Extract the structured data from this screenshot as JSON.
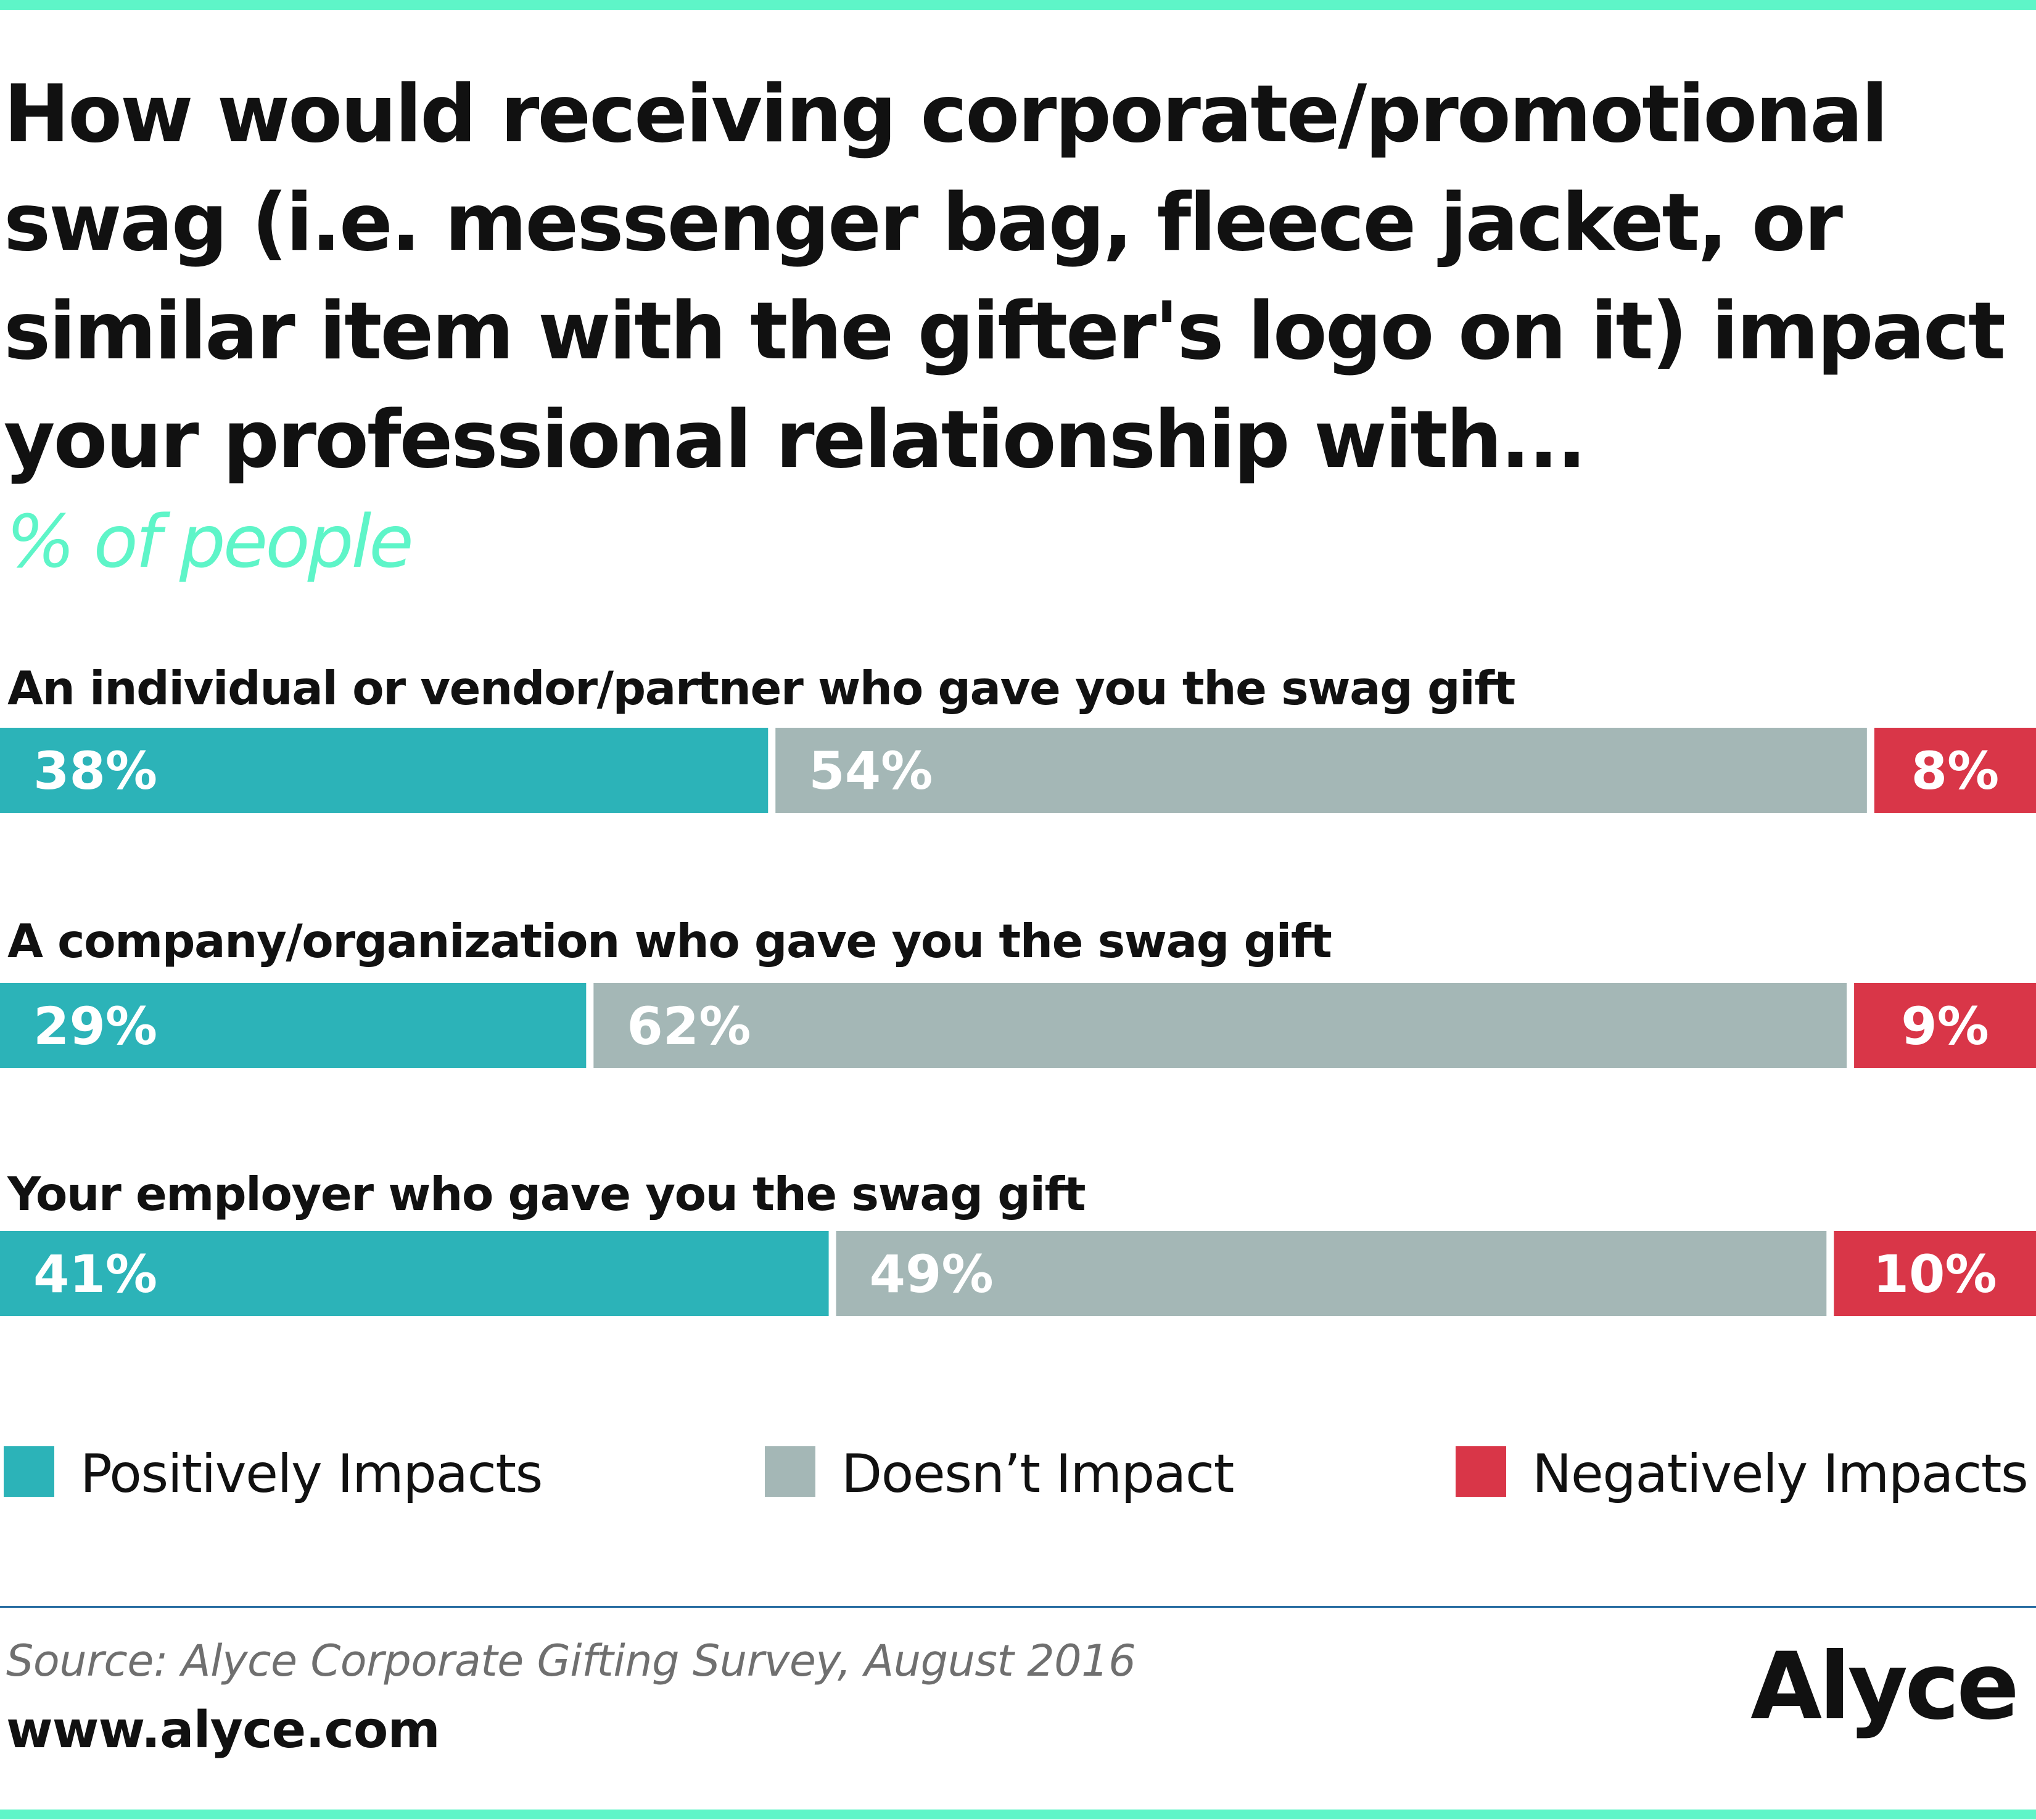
{
  "title": "How would receiving corporate/promotional swag (i.e. messenger bag, fleece jacket, or similar item with the gifter's logo on it) impact your professional relationship with...",
  "subtitle": "% of people",
  "colors": {
    "positive": "#2cb3b8",
    "neutral": "#a4b7b6",
    "negative": "#d93648",
    "accent": "#5ef5c8",
    "divider": "#2b6fa3"
  },
  "chart_data": {
    "type": "bar",
    "orientation": "horizontal",
    "stacked": true,
    "normalized_percent": true,
    "title": "How would receiving corporate/promotional swag (i.e. messenger bag, fleece jacket, or similar item with the gifter's logo on it) impact your professional relationship with...",
    "subtitle": "% of people",
    "categories": [
      "An individual or vendor/partner who gave you the swag gift",
      "A company/organization who gave you the swag gift",
      "Your employer who gave you the swag gift"
    ],
    "series": [
      {
        "name": "Positively Impacts",
        "color": "#2cb3b8",
        "values": [
          38,
          29,
          41
        ]
      },
      {
        "name": "Doesn’t Impact",
        "color": "#a4b7b6",
        "values": [
          54,
          62,
          49
        ]
      },
      {
        "name": "Negatively Impacts",
        "color": "#d93648",
        "values": [
          8,
          9,
          10
        ]
      }
    ],
    "value_suffix": "%",
    "xlim": [
      0,
      100
    ],
    "grid": false,
    "legend": "bottom"
  },
  "footer": {
    "source": "Source: Alyce Corporate Gifting Survey, August 2016",
    "website": "www.alyce.com",
    "brand": "Alyce"
  }
}
